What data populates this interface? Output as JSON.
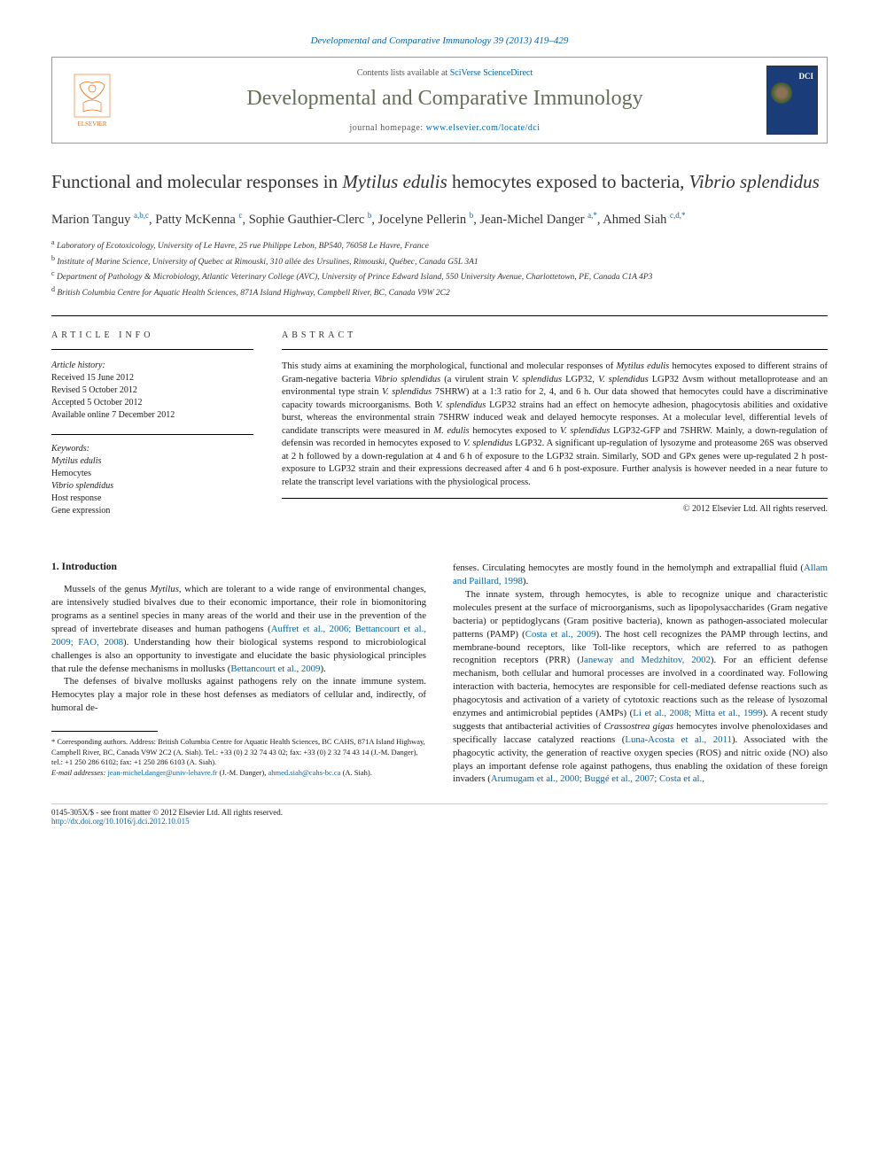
{
  "header": {
    "journal_ref": "Developmental and Comparative Immunology 39 (2013) 419–429",
    "contents_text": "Contents lists available at ",
    "contents_link": "SciVerse ScienceDirect",
    "journal_name": "Developmental and Comparative Immunology",
    "homepage_label": "journal homepage: ",
    "homepage_url": "www.elsevier.com/locate/dci",
    "publisher_name": "ELSEVIER"
  },
  "title_html": "Functional and molecular responses in <em>Mytilus edulis</em> hemocytes exposed to bacteria, <em>Vibrio splendidus</em>",
  "authors_html": "Marion Tanguy <sup>a,b,c</sup>, Patty McKenna <sup>c</sup>, Sophie Gauthier-Clerc <sup>b</sup>, Jocelyne Pellerin <sup>b</sup>, Jean-Michel Danger <sup>a,*</sup>, Ahmed Siah <sup>c,d,*</sup>",
  "affiliations": [
    "a Laboratory of Ecotoxicology, University of Le Havre, 25 rue Philippe Lebon, BP540, 76058 Le Havre, France",
    "b Institute of Marine Science, University of Quebec at Rimouski, 310 allée des Ursulines, Rimouski, Québec, Canada G5L 3A1",
    "c Department of Pathology & Microbiology, Atlantic Veterinary College (AVC), University of Prince Edward Island, 550 University Avenue, Charlottetown, PE, Canada C1A 4P3",
    "d British Columbia Centre for Aquatic Health Sciences, 871A Island Highway, Campbell River, BC, Canada V9W 2C2"
  ],
  "info": {
    "heading": "ARTICLE INFO",
    "history_label": "Article history:",
    "history": [
      "Received 15 June 2012",
      "Revised 5 October 2012",
      "Accepted 5 October 2012",
      "Available online 7 December 2012"
    ],
    "keywords_label": "Keywords:",
    "keywords": [
      "Mytilus edulis",
      "Hemocytes",
      "Vibrio splendidus",
      "Host response",
      "Gene expression"
    ]
  },
  "abstract": {
    "heading": "ABSTRACT",
    "text_html": "This study aims at examining the morphological, functional and molecular responses of <em>Mytilus edulis</em> hemocytes exposed to different strains of Gram-negative bacteria <em>Vibrio splendidus</em> (a virulent strain <em>V. splendidus</em> LGP32, <em>V. splendidus</em> LGP32 Δvsm without metalloprotease and an environmental type strain <em>V. splendidus</em> 7SHRW) at a 1:3 ratio for 2, 4, and 6 h. Our data showed that hemocytes could have a discriminative capacity towards microorganisms. Both <em>V. splendidus</em> LGP32 strains had an effect on hemocyte adhesion, phagocytosis abilities and oxidative burst, whereas the environmental strain 7SHRW induced weak and delayed hemocyte responses. At a molecular level, differential levels of candidate transcripts were measured in <em>M. edulis</em> hemocytes exposed to <em>V. splendidus</em> LGP32-GFP and 7SHRW. Mainly, a down-regulation of defensin was recorded in hemocytes exposed to <em>V. splendidus</em> LGP32. A significant up-regulation of lysozyme and proteasome 26S was observed at 2 h followed by a down-regulation at 4 and 6 h of exposure to the LGP32 strain. Similarly, SOD and GPx genes were up-regulated 2 h post-exposure to LGP32 strain and their expressions decreased after 4 and 6 h post-exposure. Further analysis is however needed in a near future to relate the transcript level variations with the physiological process.",
    "copyright": "© 2012 Elsevier Ltd. All rights reserved."
  },
  "body": {
    "intro_heading": "1. Introduction",
    "col1_p1_html": "Mussels of the genus <em>Mytilus</em>, which are tolerant to a wide range of environmental changes, are intensively studied bivalves due to their economic importance, their role in biomonitoring programs as a sentinel species in many areas of the world and their use in the prevention of the spread of invertebrate diseases and human pathogens (<a>Auffret et al., 2006; Bettancourt et al., 2009; FAO, 2008</a>). Understanding how their biological systems respond to microbiological challenges is also an opportunity to investigate and elucidate the basic physiological principles that rule the defense mechanisms in mollusks (<a>Bettancourt et al., 2009</a>).",
    "col1_p2_html": "The defenses of bivalve mollusks against pathogens rely on the innate immune system. Hemocytes play a major role in these host defenses as mediators of cellular and, indirectly, of humoral de-",
    "col2_p1_html": "fenses. Circulating hemocytes are mostly found in the hemolymph and extrapallial fluid (<a>Allam and Paillard, 1998</a>).",
    "col2_p2_html": "The innate system, through hemocytes, is able to recognize unique and characteristic molecules present at the surface of microorganisms, such as lipopolysaccharides (Gram negative bacteria) or peptidoglycans (Gram positive bacteria), known as pathogen-associated molecular patterns (PAMP) (<a>Costa et al., 2009</a>). The host cell recognizes the PAMP through lectins, and membrane-bound receptors, like Toll-like receptors, which are referred to as pathogen recognition receptors (PRR) (<a>Janeway and Medzhitov, 2002</a>). For an efficient defense mechanism, both cellular and humoral processes are involved in a coordinated way. Following interaction with bacteria, hemocytes are responsible for cell-mediated defense reactions such as phagocytosis and activation of a variety of cytotoxic reactions such as the release of lysozomal enzymes and antimicrobial peptides (AMPs) (<a>Li et al., 2008; Mitta et al., 1999</a>). A recent study suggests that antibacterial activities of <em>Crassostrea gigas</em> hemocytes involve phenoloxidases and specifically laccase catalyzed reactions (<a>Luna-Acosta et al., 2011</a>). Associated with the phagocytic activity, the generation of reactive oxygen species (ROS) and nitric oxide (NO) also plays an important defense role against pathogens, thus enabling the oxidation of these foreign invaders (<a>Arumugam et al., 2000; Buggé et al., 2007; Costa et al.,</a>"
  },
  "footnotes": {
    "corr_html": "* Corresponding authors. Address: British Columbia Centre for Aquatic Health Sciences, BC CAHS, 871A Island Highway, Campbell River, BC, Canada V9W 2C2 (A. Siah). Tel.: +33 (0) 2 32 74 43 02; fax: +33 (0) 2 32 74 43 14 (J.-M. Danger), tel.: +1 250 286 6102; fax: +1 250 286 6103 (A. Siah).",
    "email_label": "E-mail addresses: ",
    "email1": "jean-michel.danger@univ-lehavre.fr",
    "email1_who": " (J.-M. Danger), ",
    "email2": "ahmed.siah@cahs-bc.ca",
    "email2_who": " (A. Siah)."
  },
  "footer": {
    "left_line1": "0145-305X/$ - see front matter © 2012 Elsevier Ltd. All rights reserved.",
    "doi": "http://dx.doi.org/10.1016/j.dci.2012.10.015"
  },
  "colors": {
    "link": "#0066b3",
    "journal_title": "#646f57",
    "publisher": "#ff6600",
    "text": "#1a1a1a",
    "border": "#000000"
  }
}
